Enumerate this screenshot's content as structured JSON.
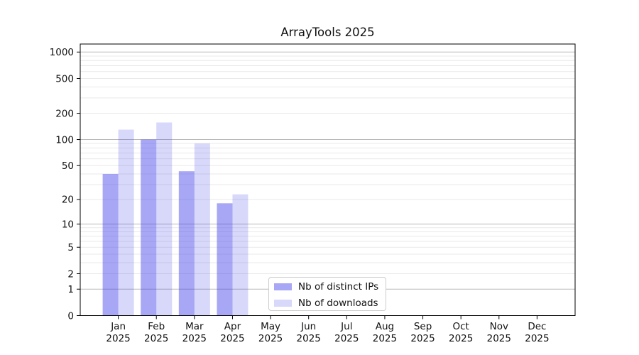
{
  "chart_data": {
    "type": "bar",
    "title": "ArrayTools 2025",
    "categories": [
      "Jan 2025",
      "Feb 2025",
      "Mar 2025",
      "Apr 2025",
      "May 2025",
      "Jun 2025",
      "Jul 2025",
      "Aug 2025",
      "Sep 2025",
      "Oct 2025",
      "Nov 2025",
      "Dec 2025"
    ],
    "series": [
      {
        "name": "Nb of distinct IPs",
        "color": "rgba(60,60,235,0.45)",
        "values": [
          40,
          100,
          43,
          18,
          null,
          null,
          null,
          null,
          null,
          null,
          null,
          null
        ]
      },
      {
        "name": "Nb of downloads",
        "color": "rgba(60,60,235,0.20)",
        "values": [
          130,
          157,
          90,
          23,
          null,
          null,
          null,
          null,
          null,
          null,
          null,
          null
        ]
      }
    ],
    "yscale": "log10(1+v)",
    "yticks": [
      0,
      1,
      2,
      5,
      10,
      20,
      50,
      100,
      200,
      500,
      1000
    ],
    "ylim": [
      0,
      1000
    ],
    "grid": true,
    "legend_position": "lower center",
    "colors": {
      "major_gridline": "#b9b9b9",
      "minor_gridline": "#e9e9e9",
      "spine": "#000000",
      "text": "#111111",
      "background": "#ffffff"
    }
  }
}
